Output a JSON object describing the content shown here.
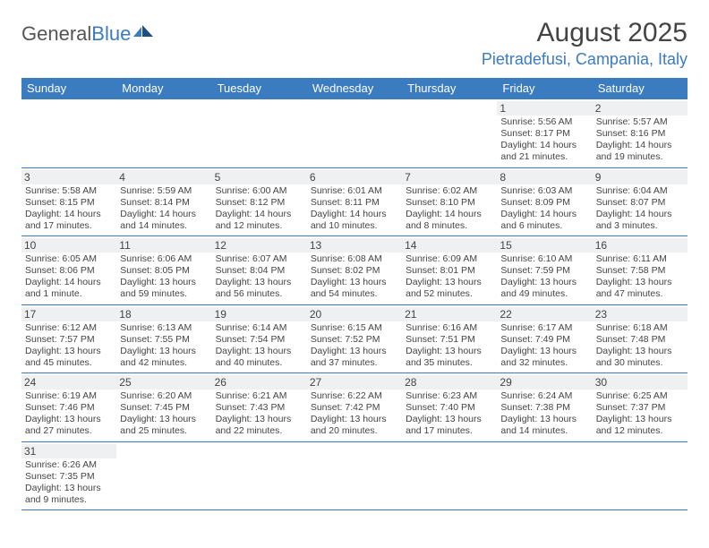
{
  "logo": {
    "general": "General",
    "blue": "Blue"
  },
  "title": "August 2025",
  "location": "Pietradefusi, Campania, Italy",
  "weekdays": [
    "Sunday",
    "Monday",
    "Tuesday",
    "Wednesday",
    "Thursday",
    "Friday",
    "Saturday"
  ],
  "colors": {
    "header_bg": "#3b7bbf",
    "header_fg": "#ffffff",
    "daynum_bg": "#eef0f1",
    "text": "#444444",
    "accent": "#3b7bbf"
  },
  "grid": [
    [
      null,
      null,
      null,
      null,
      null,
      {
        "n": "1",
        "lines": [
          "Sunrise: 5:56 AM",
          "Sunset: 8:17 PM",
          "Daylight: 14 hours",
          "and 21 minutes."
        ]
      },
      {
        "n": "2",
        "lines": [
          "Sunrise: 5:57 AM",
          "Sunset: 8:16 PM",
          "Daylight: 14 hours",
          "and 19 minutes."
        ]
      }
    ],
    [
      {
        "n": "3",
        "lines": [
          "Sunrise: 5:58 AM",
          "Sunset: 8:15 PM",
          "Daylight: 14 hours",
          "and 17 minutes."
        ]
      },
      {
        "n": "4",
        "lines": [
          "Sunrise: 5:59 AM",
          "Sunset: 8:14 PM",
          "Daylight: 14 hours",
          "and 14 minutes."
        ]
      },
      {
        "n": "5",
        "lines": [
          "Sunrise: 6:00 AM",
          "Sunset: 8:12 PM",
          "Daylight: 14 hours",
          "and 12 minutes."
        ]
      },
      {
        "n": "6",
        "lines": [
          "Sunrise: 6:01 AM",
          "Sunset: 8:11 PM",
          "Daylight: 14 hours",
          "and 10 minutes."
        ]
      },
      {
        "n": "7",
        "lines": [
          "Sunrise: 6:02 AM",
          "Sunset: 8:10 PM",
          "Daylight: 14 hours",
          "and 8 minutes."
        ]
      },
      {
        "n": "8",
        "lines": [
          "Sunrise: 6:03 AM",
          "Sunset: 8:09 PM",
          "Daylight: 14 hours",
          "and 6 minutes."
        ]
      },
      {
        "n": "9",
        "lines": [
          "Sunrise: 6:04 AM",
          "Sunset: 8:07 PM",
          "Daylight: 14 hours",
          "and 3 minutes."
        ]
      }
    ],
    [
      {
        "n": "10",
        "lines": [
          "Sunrise: 6:05 AM",
          "Sunset: 8:06 PM",
          "Daylight: 14 hours",
          "and 1 minute."
        ]
      },
      {
        "n": "11",
        "lines": [
          "Sunrise: 6:06 AM",
          "Sunset: 8:05 PM",
          "Daylight: 13 hours",
          "and 59 minutes."
        ]
      },
      {
        "n": "12",
        "lines": [
          "Sunrise: 6:07 AM",
          "Sunset: 8:04 PM",
          "Daylight: 13 hours",
          "and 56 minutes."
        ]
      },
      {
        "n": "13",
        "lines": [
          "Sunrise: 6:08 AM",
          "Sunset: 8:02 PM",
          "Daylight: 13 hours",
          "and 54 minutes."
        ]
      },
      {
        "n": "14",
        "lines": [
          "Sunrise: 6:09 AM",
          "Sunset: 8:01 PM",
          "Daylight: 13 hours",
          "and 52 minutes."
        ]
      },
      {
        "n": "15",
        "lines": [
          "Sunrise: 6:10 AM",
          "Sunset: 7:59 PM",
          "Daylight: 13 hours",
          "and 49 minutes."
        ]
      },
      {
        "n": "16",
        "lines": [
          "Sunrise: 6:11 AM",
          "Sunset: 7:58 PM",
          "Daylight: 13 hours",
          "and 47 minutes."
        ]
      }
    ],
    [
      {
        "n": "17",
        "lines": [
          "Sunrise: 6:12 AM",
          "Sunset: 7:57 PM",
          "Daylight: 13 hours",
          "and 45 minutes."
        ]
      },
      {
        "n": "18",
        "lines": [
          "Sunrise: 6:13 AM",
          "Sunset: 7:55 PM",
          "Daylight: 13 hours",
          "and 42 minutes."
        ]
      },
      {
        "n": "19",
        "lines": [
          "Sunrise: 6:14 AM",
          "Sunset: 7:54 PM",
          "Daylight: 13 hours",
          "and 40 minutes."
        ]
      },
      {
        "n": "20",
        "lines": [
          "Sunrise: 6:15 AM",
          "Sunset: 7:52 PM",
          "Daylight: 13 hours",
          "and 37 minutes."
        ]
      },
      {
        "n": "21",
        "lines": [
          "Sunrise: 6:16 AM",
          "Sunset: 7:51 PM",
          "Daylight: 13 hours",
          "and 35 minutes."
        ]
      },
      {
        "n": "22",
        "lines": [
          "Sunrise: 6:17 AM",
          "Sunset: 7:49 PM",
          "Daylight: 13 hours",
          "and 32 minutes."
        ]
      },
      {
        "n": "23",
        "lines": [
          "Sunrise: 6:18 AM",
          "Sunset: 7:48 PM",
          "Daylight: 13 hours",
          "and 30 minutes."
        ]
      }
    ],
    [
      {
        "n": "24",
        "lines": [
          "Sunrise: 6:19 AM",
          "Sunset: 7:46 PM",
          "Daylight: 13 hours",
          "and 27 minutes."
        ]
      },
      {
        "n": "25",
        "lines": [
          "Sunrise: 6:20 AM",
          "Sunset: 7:45 PM",
          "Daylight: 13 hours",
          "and 25 minutes."
        ]
      },
      {
        "n": "26",
        "lines": [
          "Sunrise: 6:21 AM",
          "Sunset: 7:43 PM",
          "Daylight: 13 hours",
          "and 22 minutes."
        ]
      },
      {
        "n": "27",
        "lines": [
          "Sunrise: 6:22 AM",
          "Sunset: 7:42 PM",
          "Daylight: 13 hours",
          "and 20 minutes."
        ]
      },
      {
        "n": "28",
        "lines": [
          "Sunrise: 6:23 AM",
          "Sunset: 7:40 PM",
          "Daylight: 13 hours",
          "and 17 minutes."
        ]
      },
      {
        "n": "29",
        "lines": [
          "Sunrise: 6:24 AM",
          "Sunset: 7:38 PM",
          "Daylight: 13 hours",
          "and 14 minutes."
        ]
      },
      {
        "n": "30",
        "lines": [
          "Sunrise: 6:25 AM",
          "Sunset: 7:37 PM",
          "Daylight: 13 hours",
          "and 12 minutes."
        ]
      }
    ],
    [
      {
        "n": "31",
        "lines": [
          "Sunrise: 6:26 AM",
          "Sunset: 7:35 PM",
          "Daylight: 13 hours",
          "and 9 minutes."
        ]
      },
      null,
      null,
      null,
      null,
      null,
      null
    ]
  ]
}
